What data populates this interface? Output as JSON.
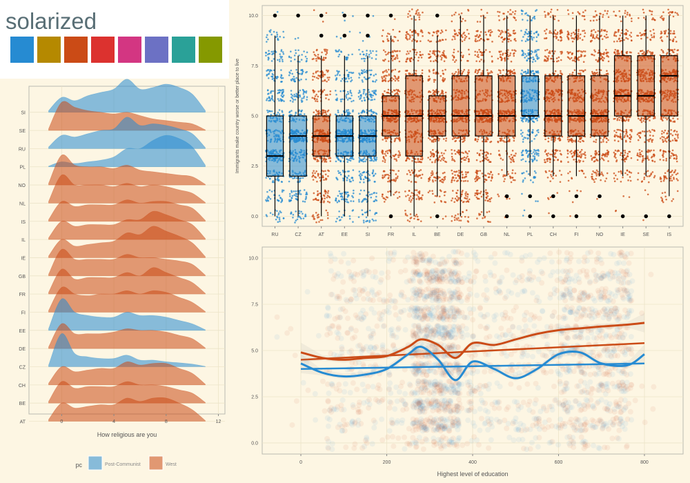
{
  "header": {
    "title": "solarized",
    "palette": [
      "#268bd2",
      "#b58900",
      "#cb4b16",
      "#dc322f",
      "#d33682",
      "#6c71c4",
      "#2aa198",
      "#859900"
    ]
  },
  "colors": {
    "post_communist": "#268bd2",
    "west": "#cb4b16",
    "background": "#fdf6e3"
  },
  "chart_data": [
    {
      "type": "ridgeline",
      "xlabel": "How religious are you",
      "xticks": [
        "0",
        "4",
        "8",
        "12"
      ],
      "xlim": [
        -2.5,
        12.5
      ],
      "categories": [
        "SI",
        "SE",
        "RU",
        "PL",
        "NO",
        "NL",
        "IS",
        "IL",
        "IE",
        "GB",
        "FR",
        "FI",
        "EE",
        "DE",
        "CZ",
        "CH",
        "BE",
        "AT"
      ],
      "group": [
        "Post-Communist",
        "West",
        "Post-Communist",
        "Post-Communist",
        "West",
        "West",
        "West",
        "West",
        "West",
        "West",
        "West",
        "West",
        "Post-Communist",
        "West",
        "Post-Communist",
        "West",
        "West",
        "West"
      ],
      "legend": {
        "title": "pc",
        "entries": [
          "Post-Communist",
          "West"
        ],
        "position": "bottom"
      },
      "density_grid_x": [
        -1,
        0,
        1,
        2,
        3,
        4,
        5,
        6,
        7,
        8,
        9,
        10,
        11
      ],
      "densities": {
        "SI": [
          0.05,
          0.45,
          0.35,
          0.5,
          0.6,
          0.7,
          1.0,
          0.7,
          0.75,
          0.85,
          0.75,
          0.55,
          0.05
        ],
        "SE": [
          0.05,
          0.85,
          0.7,
          0.6,
          0.55,
          0.5,
          0.55,
          0.45,
          0.35,
          0.3,
          0.25,
          0.2,
          0.02
        ],
        "RU": [
          0.05,
          0.4,
          0.35,
          0.45,
          0.55,
          0.6,
          0.95,
          0.7,
          0.75,
          0.7,
          0.6,
          0.45,
          0.03
        ],
        "PL": [
          0.02,
          0.15,
          0.1,
          0.15,
          0.2,
          0.3,
          0.55,
          0.55,
          0.8,
          0.95,
          0.85,
          0.6,
          0.05
        ],
        "NO": [
          0.05,
          0.9,
          0.6,
          0.55,
          0.55,
          0.5,
          0.6,
          0.45,
          0.4,
          0.35,
          0.3,
          0.25,
          0.02
        ],
        "NL": [
          0.05,
          0.85,
          0.55,
          0.55,
          0.55,
          0.5,
          0.6,
          0.5,
          0.55,
          0.5,
          0.4,
          0.3,
          0.02
        ],
        "IS": [
          0.05,
          0.6,
          0.45,
          0.5,
          0.5,
          0.5,
          0.65,
          0.55,
          0.6,
          0.6,
          0.5,
          0.4,
          0.03
        ],
        "IL": [
          0.05,
          0.55,
          0.4,
          0.45,
          0.45,
          0.45,
          0.6,
          0.6,
          0.85,
          0.75,
          0.6,
          0.45,
          0.03
        ],
        "IE": [
          0.05,
          0.55,
          0.35,
          0.4,
          0.45,
          0.5,
          0.75,
          0.7,
          0.95,
          0.8,
          0.65,
          0.45,
          0.03
        ],
        "GB": [
          0.05,
          0.8,
          0.5,
          0.5,
          0.5,
          0.5,
          0.65,
          0.55,
          0.55,
          0.5,
          0.45,
          0.35,
          0.02
        ],
        "FR": [
          0.05,
          0.75,
          0.45,
          0.5,
          0.5,
          0.5,
          0.65,
          0.55,
          0.8,
          0.65,
          0.5,
          0.35,
          0.02
        ],
        "FI": [
          0.05,
          0.75,
          0.55,
          0.5,
          0.55,
          0.55,
          0.65,
          0.55,
          0.65,
          0.6,
          0.45,
          0.3,
          0.02
        ],
        "EE": [
          0.05,
          0.95,
          0.55,
          0.45,
          0.4,
          0.4,
          0.55,
          0.45,
          0.45,
          0.4,
          0.3,
          0.2,
          0.02
        ],
        "DE": [
          0.05,
          0.75,
          0.45,
          0.45,
          0.45,
          0.5,
          0.6,
          0.55,
          0.55,
          0.5,
          0.4,
          0.3,
          0.02
        ],
        "CZ": [
          0.05,
          1.0,
          0.4,
          0.3,
          0.25,
          0.25,
          0.35,
          0.2,
          0.2,
          0.15,
          0.12,
          0.08,
          0.01
        ],
        "CH": [
          0.05,
          0.55,
          0.4,
          0.45,
          0.5,
          0.5,
          0.7,
          0.6,
          0.65,
          0.65,
          0.5,
          0.35,
          0.02
        ],
        "BE": [
          0.05,
          0.65,
          0.45,
          0.5,
          0.5,
          0.5,
          0.65,
          0.55,
          0.55,
          0.5,
          0.4,
          0.3,
          0.02
        ],
        "AT": [
          0.05,
          0.55,
          0.4,
          0.45,
          0.5,
          0.5,
          0.7,
          0.6,
          0.7,
          0.7,
          0.55,
          0.35,
          0.02
        ]
      }
    },
    {
      "type": "boxplot",
      "ylabel": "Immigrants make country worse or better place to live",
      "yticks": [
        "0.0",
        "2.5",
        "5.0",
        "7.5",
        "10.0"
      ],
      "ylim": [
        -0.5,
        10.5
      ],
      "categories": [
        "RU",
        "CZ",
        "AT",
        "EE",
        "SI",
        "FR",
        "IL",
        "BE",
        "DE",
        "GB",
        "NL",
        "PL",
        "CH",
        "FI",
        "NO",
        "IE",
        "SE",
        "IS"
      ],
      "group": [
        "Post-Communist",
        "Post-Communist",
        "West",
        "Post-Communist",
        "Post-Communist",
        "West",
        "West",
        "West",
        "West",
        "West",
        "West",
        "Post-Communist",
        "West",
        "West",
        "West",
        "West",
        "West",
        "West"
      ],
      "boxes": [
        {
          "q1": 2,
          "median": 3,
          "q3": 5,
          "low": 0,
          "high": 9,
          "outliers": [
            10
          ]
        },
        {
          "q1": 2,
          "median": 4,
          "q3": 5,
          "low": 0,
          "high": 8,
          "outliers": [
            10
          ]
        },
        {
          "q1": 3,
          "median": 4,
          "q3": 5,
          "low": 0,
          "high": 8,
          "outliers": [
            9,
            10
          ]
        },
        {
          "q1": 3,
          "median": 4,
          "q3": 5,
          "low": 0,
          "high": 8,
          "outliers": [
            9,
            10
          ]
        },
        {
          "q1": 3,
          "median": 4,
          "q3": 5,
          "low": 0,
          "high": 8,
          "outliers": [
            9,
            10
          ]
        },
        {
          "q1": 4,
          "median": 5,
          "q3": 6,
          "low": 1,
          "high": 9,
          "outliers": [
            0,
            10
          ]
        },
        {
          "q1": 3,
          "median": 5,
          "q3": 7,
          "low": 0,
          "high": 10,
          "outliers": []
        },
        {
          "q1": 4,
          "median": 5,
          "q3": 6,
          "low": 1,
          "high": 9,
          "outliers": [
            0,
            10
          ]
        },
        {
          "q1": 4,
          "median": 5,
          "q3": 7,
          "low": 0,
          "high": 10,
          "outliers": []
        },
        {
          "q1": 4,
          "median": 5,
          "q3": 7,
          "low": 0,
          "high": 10,
          "outliers": []
        },
        {
          "q1": 4,
          "median": 5,
          "q3": 7,
          "low": 2,
          "high": 10,
          "outliers": [
            0,
            1
          ]
        },
        {
          "q1": 5,
          "median": 5,
          "q3": 7,
          "low": 2,
          "high": 10,
          "outliers": [
            0,
            1
          ]
        },
        {
          "q1": 4,
          "median": 5,
          "q3": 7,
          "low": 2,
          "high": 10,
          "outliers": [
            0,
            1
          ]
        },
        {
          "q1": 4,
          "median": 5,
          "q3": 7,
          "low": 2,
          "high": 10,
          "outliers": [
            0,
            1
          ]
        },
        {
          "q1": 4,
          "median": 5,
          "q3": 7,
          "low": 2,
          "high": 10,
          "outliers": [
            0,
            1
          ]
        },
        {
          "q1": 5,
          "median": 6,
          "q3": 8,
          "low": 2,
          "high": 10,
          "outliers": [
            0
          ]
        },
        {
          "q1": 5,
          "median": 6,
          "q3": 8,
          "low": 2,
          "high": 10,
          "outliers": [
            0
          ]
        },
        {
          "q1": 5,
          "median": 7,
          "q3": 8,
          "low": 1,
          "high": 10,
          "outliers": [
            0
          ]
        }
      ]
    },
    {
      "type": "scatter",
      "xlabel": "Highest level of education",
      "ylabel": "",
      "xticks": [
        "0",
        "200",
        "400",
        "600",
        "800"
      ],
      "yticks": [
        "0.0",
        "2.5",
        "5.0",
        "7.5",
        "10.0"
      ],
      "xlim": [
        -90,
        890
      ],
      "ylim": [
        -0.6,
        10.6
      ],
      "smooth_x": [
        0,
        50,
        100,
        150,
        200,
        250,
        280,
        320,
        360,
        400,
        450,
        500,
        550,
        600,
        650,
        700,
        760,
        800
      ],
      "series": [
        {
          "name": "West",
          "linear": [
            4.5,
            5.4
          ],
          "smooth": [
            4.9,
            4.6,
            4.5,
            4.6,
            4.7,
            5.2,
            5.6,
            5.3,
            4.6,
            5.4,
            5.3,
            5.6,
            5.9,
            6.1,
            6.2,
            6.3,
            6.4,
            6.5
          ]
        },
        {
          "name": "Post-Communist",
          "linear": [
            4.0,
            4.3
          ],
          "smooth": [
            4.3,
            3.8,
            3.6,
            3.7,
            4.0,
            4.8,
            5.2,
            4.5,
            3.4,
            4.4,
            4.0,
            3.5,
            4.0,
            4.8,
            4.9,
            4.3,
            4.2,
            4.8
          ]
        }
      ]
    }
  ]
}
